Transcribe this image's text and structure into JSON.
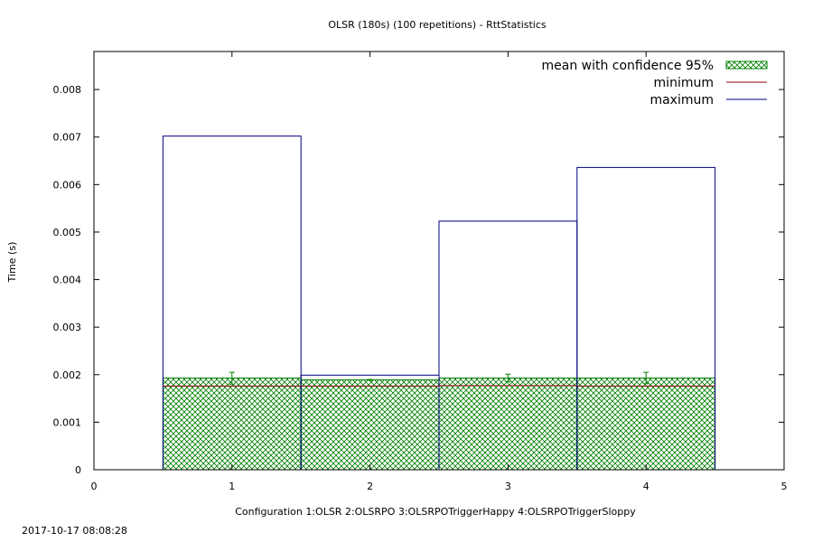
{
  "chart_data": {
    "type": "bar",
    "title": "OLSR (180s) (100 repetitions) - RttStatistics",
    "xlabel": "Configuration 1:OLSR  2:OLSRPO  3:OLSRPOTriggerHappy  4:OLSRPOTriggerSloppy",
    "ylabel": "Time (s)",
    "xlim": [
      0,
      5
    ],
    "ylim": [
      0,
      0.0088
    ],
    "x_ticks": [
      "0",
      "1",
      "2",
      "3",
      "4",
      "5"
    ],
    "y_ticks": [
      "0",
      "0.001",
      "0.002",
      "0.003",
      "0.004",
      "0.005",
      "0.006",
      "0.007",
      "0.008"
    ],
    "grid": false,
    "legend_position": "top-right",
    "x": [
      1,
      2,
      3,
      4
    ],
    "series": [
      {
        "name": "mean with confidence 95%",
        "style": "bar-hatched",
        "values": [
          0.00193,
          0.00189,
          0.00193,
          0.00193
        ],
        "ci_low": [
          0.0018,
          0.00188,
          0.00185,
          0.00181
        ],
        "ci_high": [
          0.00205,
          0.0019,
          0.00201,
          0.00205
        ]
      },
      {
        "name": "minimum",
        "style": "bar-outline",
        "values": [
          0.00176,
          0.00176,
          0.00177,
          0.00176
        ]
      },
      {
        "name": "maximum",
        "style": "bar-outline",
        "values": [
          0.00702,
          0.00199,
          0.00523,
          0.00636
        ]
      }
    ],
    "colors": {
      "mean": "#008000",
      "minimum": "#8b0000",
      "maximum": "#000080"
    }
  },
  "footer": {
    "timestamp": "2017-10-17 08:08:28"
  }
}
